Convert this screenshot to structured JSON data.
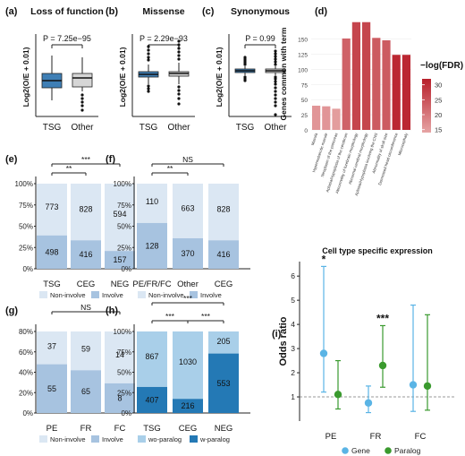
{
  "chart_data": [
    {
      "id": "a",
      "panel_label": "(a)",
      "type": "box",
      "title": "Loss of function",
      "ylabel": "Log2(O/E + 0.01)",
      "categories": [
        "TSG",
        "Other"
      ],
      "colors": [
        "#3f7fb5",
        "#d6d6d6"
      ],
      "pvalue_label": "P = 7.25e−95"
    },
    {
      "id": "b",
      "panel_label": "(b)",
      "type": "box",
      "title": "Missense",
      "ylabel": "Log2(O/E + 0.01)",
      "categories": [
        "TSG",
        "Other"
      ],
      "colors": [
        "#3f7fb5",
        "#d6d6d6"
      ],
      "pvalue_label": "P = 2.29e−93"
    },
    {
      "id": "c",
      "panel_label": "(c)",
      "type": "box",
      "title": "Synonymous",
      "ylabel": "Log2(O/E + 0.01)",
      "categories": [
        "TSG",
        "Other"
      ],
      "colors": [
        "#3f7fb5",
        "#d6d6d6"
      ],
      "pvalue_label": "P = 0.99"
    },
    {
      "id": "d",
      "panel_label": "(d)",
      "type": "bar",
      "ylabel": "Genes common with term",
      "categories": [
        "Macula",
        "Hypermelanotic macule",
        "Neoplasm of the pancreas",
        "Aplasia/Hypoplasia of the cerebrum",
        "Abnormality of forebrain morphology",
        "Abnormal cerebral morphology",
        "Aplasia/Hypoplasia involving the CNS",
        "Abnormality of skull size",
        "Decreased head circumference",
        "Microcephaly"
      ],
      "values": [
        40,
        39,
        35,
        151,
        178,
        178,
        152,
        148,
        124,
        124
      ],
      "neg_log_fdr": [
        16,
        16,
        15,
        23,
        27,
        27,
        24,
        24,
        31,
        31
      ],
      "yticks": [
        0,
        25,
        50,
        75,
        100,
        125,
        150
      ],
      "ylim": [
        0,
        185
      ],
      "legend_title": "−log(FDR)",
      "legend_ticks": [
        15,
        20,
        25,
        30
      ],
      "legend_range": [
        14,
        32
      ],
      "color_low": "#e6a4a4",
      "color_high": "#b8202b"
    },
    {
      "id": "e",
      "panel_label": "(e)",
      "type": "stacked_bar",
      "categories": [
        "TSG",
        "CEG",
        "NEG"
      ],
      "series": [
        {
          "name": "Non-involve",
          "values": [
            773,
            828,
            594
          ]
        },
        {
          "name": "Involve",
          "values": [
            498,
            416,
            157
          ]
        }
      ],
      "yticks": [
        "0%",
        "25%",
        "50%",
        "75%",
        "100%"
      ],
      "significance": [
        {
          "from": 0,
          "to": 1,
          "label": "**"
        },
        {
          "from": 0,
          "to": 2,
          "label": "***"
        }
      ]
    },
    {
      "id": "f",
      "panel_label": "(f)",
      "type": "stacked_bar",
      "categories": [
        "PE/FR/FC",
        "Other",
        "CEG"
      ],
      "series": [
        {
          "name": "Non-involve",
          "values": [
            110,
            663,
            828
          ]
        },
        {
          "name": "Involve",
          "values": [
            128,
            370,
            416
          ]
        }
      ],
      "yticks": [
        "0%",
        "25%",
        "50%",
        "75%",
        "100%"
      ],
      "significance": [
        {
          "from": 0,
          "to": 1,
          "label": "**"
        },
        {
          "from": 0,
          "to": 2,
          "label": "NS"
        }
      ]
    },
    {
      "id": "g",
      "panel_label": "(g)",
      "type": "stacked_bar",
      "categories": [
        "PE",
        "FR",
        "FC"
      ],
      "series": [
        {
          "name": "Non-involve",
          "values": [
            37,
            59,
            14
          ]
        },
        {
          "name": "Involve",
          "values": [
            55,
            65,
            8
          ]
        }
      ],
      "yticks": [
        "0%",
        "20%",
        "40%",
        "60%",
        "80%"
      ],
      "significance": [
        {
          "from": 0,
          "to": 2,
          "label": "NS"
        }
      ]
    },
    {
      "id": "h",
      "panel_label": "(h)",
      "type": "stacked_bar",
      "categories": [
        "TSG",
        "CEG",
        "NEG"
      ],
      "series": [
        {
          "name": "wo-paralog",
          "values": [
            867,
            1030,
            205
          ]
        },
        {
          "name": "w-paralog",
          "values": [
            407,
            216,
            553
          ]
        }
      ],
      "yticks": [
        "0%",
        "25%",
        "50%",
        "75%",
        "100%"
      ],
      "significance": [
        {
          "from": 0,
          "to": 1,
          "label": "***"
        },
        {
          "from": 1,
          "to": 2,
          "label": "***"
        },
        {
          "from": 0,
          "to": 2,
          "label": "***"
        }
      ]
    },
    {
      "id": "i",
      "panel_label": "(i)",
      "type": "scatter_errorbar",
      "title": "Cell type specific expression",
      "ylabel": "Odds ratio",
      "categories": [
        "PE",
        "FR",
        "FC"
      ],
      "series": [
        {
          "name": "Gene",
          "color": "#5ab4e5",
          "estimate": [
            2.8,
            0.75,
            1.5
          ],
          "lower": [
            1.2,
            0.35,
            0.4
          ],
          "upper": [
            6.4,
            1.45,
            4.8
          ]
        },
        {
          "name": "Paralog",
          "color": "#3a9a2e",
          "estimate": [
            1.1,
            2.3,
            1.45
          ],
          "lower": [
            0.5,
            1.4,
            0.45
          ],
          "upper": [
            2.5,
            3.95,
            4.4
          ]
        }
      ],
      "yticks": [
        1,
        2,
        3,
        4,
        5,
        6
      ],
      "ylim": [
        0,
        6.6
      ],
      "reference_line": 1,
      "significance": [
        {
          "category": 0,
          "label": "*"
        },
        {
          "category": 1,
          "label": "***"
        }
      ]
    }
  ]
}
